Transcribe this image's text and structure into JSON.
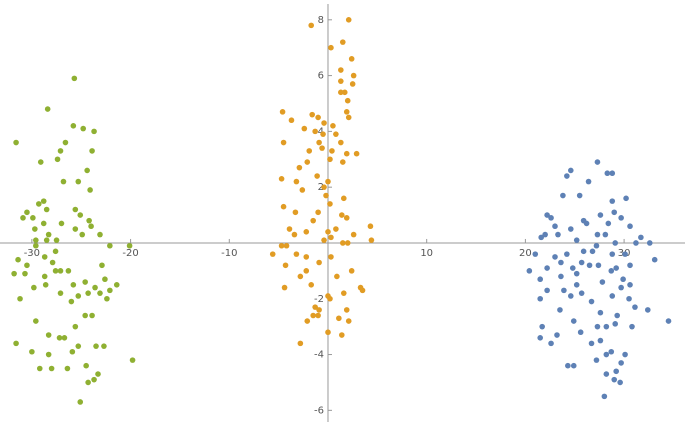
{
  "chart_data": {
    "type": "scatter",
    "xlim": [
      -33.23,
      36.17
    ],
    "ylim": [
      -6.49,
      8.71
    ],
    "xticks": [
      -30,
      -20,
      -10,
      10,
      20,
      30
    ],
    "yticks": [
      -6,
      -4,
      -2,
      2,
      4,
      6,
      8
    ],
    "series": [
      {
        "color": "#5e81b5",
        "x": [
          27.3,
          28.3,
          28.8,
          24.6,
          24.2,
          26.4,
          25.5,
          23.8,
          30.2,
          28.8,
          22.2,
          29.0,
          22.6,
          27.6,
          29.7,
          25.9,
          23.0,
          28.4,
          24.6,
          26.2,
          30.6,
          22.0,
          23.3,
          27.3,
          28.1,
          31.7,
          25.2,
          21.6,
          29.1,
          31.2,
          27.2,
          32.6,
          26.8,
          24.2,
          25.9,
          28.8,
          21.0,
          23.0,
          30.1,
          33.1,
          25.7,
          23.6,
          27.4,
          30.6,
          22.2,
          24.8,
          26.5,
          29.2,
          20.4,
          25.2,
          28.7,
          23.6,
          29.9,
          21.5,
          27.8,
          25.2,
          30.6,
          22.2,
          23.9,
          25.7,
          29.7,
          24.6,
          28.8,
          30.5,
          21.5,
          31.1,
          26.7,
          23.5,
          27.6,
          32.4,
          29.3,
          24.9,
          29.1,
          21.7,
          27.3,
          25.6,
          34.5,
          28.2,
          23.2,
          30.8,
          21.5,
          22.6,
          26.7,
          27.6,
          28.2,
          28.7,
          30.1,
          29.7,
          27.2,
          24.3,
          24.9,
          29.2,
          28.2,
          29.0,
          29.6,
          28.0
        ],
        "values": [
          2.9,
          2.5,
          2.5,
          2.6,
          2.4,
          2.2,
          1.7,
          1.7,
          1.6,
          1.5,
          1.0,
          1.1,
          0.9,
          1.0,
          0.9,
          0.8,
          0.6,
          0.7,
          0.5,
          0.7,
          0.6,
          0.3,
          0.3,
          0.3,
          0.3,
          0.2,
          0.1,
          0.2,
          0.0,
          0.0,
          -0.1,
          0.0,
          -0.3,
          -0.4,
          -0.3,
          -0.4,
          -0.4,
          -0.5,
          -0.4,
          -0.6,
          -0.7,
          -0.7,
          -0.8,
          -0.8,
          -0.9,
          -0.9,
          -0.8,
          -0.9,
          -1.0,
          -1.1,
          -1.0,
          -1.2,
          -1.3,
          -1.3,
          -1.4,
          -1.5,
          -1.5,
          -1.7,
          -1.7,
          -1.8,
          -1.6,
          -1.9,
          -1.9,
          -2.0,
          -2.0,
          -2.3,
          -2.1,
          -2.4,
          -2.5,
          -2.4,
          -2.6,
          -2.8,
          -2.9,
          -3.0,
          -3.0,
          -3.2,
          -2.8,
          -3.0,
          -3.3,
          -3.0,
          -3.4,
          -3.6,
          -3.6,
          -3.5,
          -4.0,
          -3.9,
          -4.0,
          -4.3,
          -4.2,
          -4.4,
          -4.4,
          -4.6,
          -4.7,
          -4.9,
          -5.0,
          -5.5
        ]
      },
      {
        "color": "#e19c24",
        "x": [
          2.1,
          -1.7,
          1.5,
          0.3,
          2.4,
          1.3,
          2.6,
          1.3,
          2.5,
          1.3,
          1.7,
          2.0,
          1.9,
          -4.6,
          -1.6,
          -1.0,
          2.1,
          -3.7,
          -0.4,
          0.5,
          -2.4,
          0.8,
          -1.3,
          -0.5,
          -4.5,
          -0.9,
          1.3,
          -1.9,
          -0.6,
          0.4,
          1.9,
          0.2,
          -2.1,
          2.9,
          1.5,
          -2.9,
          -1.1,
          -4.7,
          -3.2,
          0.0,
          -0.4,
          -2.6,
          -0.2,
          1.6,
          -4.5,
          0.2,
          -1.0,
          1.4,
          -3.3,
          1.9,
          -1.5,
          4.3,
          -3.9,
          0.8,
          -2.2,
          0.0,
          2.6,
          -3.4,
          4.4,
          1.5,
          -0.4,
          2.0,
          0.3,
          -4.7,
          -4.2,
          -5.6,
          -3.2,
          0.3,
          -2.2,
          -4.3,
          -0.9,
          -2.2,
          2.4,
          -2.8,
          0.9,
          3.3,
          3.5,
          -1.7,
          1.6,
          -4.4,
          0.0,
          0.2,
          -1.3,
          -0.9,
          1.9,
          -1.0,
          -1.5,
          -2.1,
          1.1,
          2.1,
          0.0,
          1.4,
          -2.8
        ],
        "values": [
          8.0,
          7.8,
          7.2,
          7.0,
          6.6,
          6.2,
          6.0,
          5.8,
          5.7,
          5.4,
          5.4,
          5.1,
          4.7,
          4.7,
          4.6,
          4.5,
          4.5,
          4.4,
          4.3,
          4.2,
          4.1,
          3.9,
          4.0,
          3.9,
          3.6,
          3.6,
          3.6,
          3.3,
          3.4,
          3.3,
          3.2,
          3.0,
          2.9,
          3.2,
          2.9,
          2.7,
          2.4,
          2.3,
          2.2,
          2.2,
          2.0,
          1.9,
          1.7,
          1.6,
          1.3,
          1.4,
          1.1,
          1.0,
          1.1,
          0.9,
          0.8,
          0.6,
          0.5,
          0.5,
          0.4,
          0.4,
          0.3,
          0.3,
          0.1,
          0.0,
          0.1,
          0.0,
          0.2,
          -0.1,
          -0.1,
          -0.4,
          -0.4,
          -0.5,
          -0.5,
          -0.8,
          -0.7,
          -1.0,
          -1.0,
          -1.2,
          -1.2,
          -1.6,
          -1.7,
          -1.5,
          -1.8,
          -1.6,
          -1.9,
          -2.0,
          -2.3,
          -2.4,
          -2.4,
          -2.6,
          -2.6,
          -2.8,
          -2.7,
          -2.8,
          -3.2,
          -3.3,
          -3.6
        ]
      },
      {
        "color": "#8fb032",
        "x": [
          -25.7,
          -28.4,
          -25.8,
          -24.8,
          -23.7,
          -31.6,
          -26.6,
          -27.1,
          -23.9,
          -27.4,
          -29.1,
          -24.4,
          -26.8,
          -25.3,
          -24.1,
          -28.8,
          -29.3,
          -28.5,
          -25.6,
          -30.5,
          -30.9,
          -25.1,
          -29.9,
          -24.2,
          -27.0,
          -29.7,
          -28.8,
          -24.0,
          -25.6,
          -28.3,
          -24.9,
          -29.6,
          -27.5,
          -28.5,
          -23.1,
          -20.1,
          -22.1,
          -29.6,
          -27.6,
          -31.4,
          -28.7,
          -27.9,
          -22.9,
          -30.5,
          -27.1,
          -26.3,
          -27.6,
          -30.7,
          -28.7,
          -31.8,
          -22.6,
          -24.6,
          -28.6,
          -25.8,
          -21.4,
          -29.8,
          -23.6,
          -24.3,
          -23.1,
          -27.1,
          -25.3,
          -22.1,
          -31.2,
          -26.0,
          -22.4,
          -24.6,
          -23.9,
          -25.6,
          -29.6,
          -28.3,
          -27.2,
          -26.7,
          -31.6,
          -23.5,
          -22.7,
          -25.3,
          -25.9,
          -19.8,
          -28.3,
          -30.0,
          -29.2,
          -28.0,
          -26.4,
          -24.5,
          -23.3,
          -23.7,
          -24.3,
          -25.1
        ],
        "values": [
          5.9,
          4.8,
          4.2,
          4.1,
          4.0,
          3.6,
          3.6,
          3.3,
          3.3,
          3.0,
          2.9,
          2.6,
          2.2,
          2.2,
          1.9,
          1.5,
          1.4,
          1.2,
          1.2,
          1.1,
          0.9,
          1.0,
          0.9,
          0.8,
          0.7,
          0.5,
          0.7,
          0.6,
          0.5,
          0.3,
          0.3,
          0.1,
          0.1,
          0.1,
          0.3,
          -0.1,
          -0.1,
          -0.1,
          -0.3,
          -0.6,
          -0.5,
          -0.7,
          -0.8,
          -0.8,
          -1.0,
          -1.0,
          -1.0,
          -1.1,
          -1.2,
          -1.1,
          -1.3,
          -1.4,
          -1.5,
          -1.5,
          -1.5,
          -1.6,
          -1.6,
          -1.8,
          -1.8,
          -1.8,
          -1.9,
          -1.7,
          -2.0,
          -2.1,
          -2.0,
          -2.6,
          -2.6,
          -3.0,
          -2.8,
          -3.3,
          -3.4,
          -3.4,
          -3.6,
          -3.7,
          -3.7,
          -3.7,
          -3.9,
          -4.2,
          -4.0,
          -3.9,
          -4.5,
          -4.5,
          -4.5,
          -4.4,
          -4.7,
          -4.9,
          -5.0,
          -5.7
        ]
      }
    ]
  }
}
